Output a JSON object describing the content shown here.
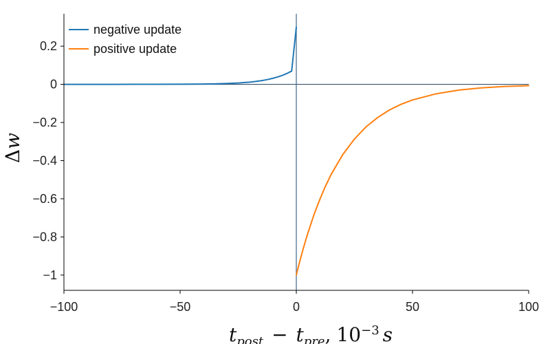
{
  "chart_data": {
    "type": "line",
    "xlim": [
      -100,
      100
    ],
    "ylim": [
      -1.08,
      0.37
    ],
    "xticks": [
      {
        "value": -100,
        "label": "−100"
      },
      {
        "value": -50,
        "label": "−50"
      },
      {
        "value": 0,
        "label": "0"
      },
      {
        "value": 50,
        "label": "50"
      },
      {
        "value": 100,
        "label": "100"
      }
    ],
    "yticks": [
      {
        "value": 0.2,
        "label": "0.2"
      },
      {
        "value": 0,
        "label": "0"
      },
      {
        "value": -0.2,
        "label": "−0.2"
      },
      {
        "value": -0.4,
        "label": "−0.4"
      },
      {
        "value": -0.6,
        "label": "−0.6"
      },
      {
        "value": -0.8,
        "label": "−0.8"
      },
      {
        "value": -1,
        "label": "−1"
      }
    ],
    "xlabel": {
      "t": "t",
      "sub_post": "post",
      "minus": "−",
      "sub_pre": "pre",
      "comma": ",",
      "ten": "10",
      "exp": "−3",
      "unit": "s"
    },
    "ylabel": {
      "delta": "Δ",
      "w": "w"
    },
    "grid": false,
    "legend_position": "top-left",
    "series": [
      {
        "name": "negative update",
        "color": "#1f77b4",
        "x": [
          -100,
          -90,
          -80,
          -70,
          -60,
          -50,
          -45,
          -40,
          -35,
          -30,
          -25,
          -20,
          -17.5,
          -15,
          -12.5,
          -10,
          -8,
          -6,
          -4,
          -2,
          0
        ],
        "y": [
          0.0,
          0.0,
          0.0,
          0.0001,
          0.0002,
          0.0006,
          0.001,
          0.0016,
          0.0026,
          0.0043,
          0.0071,
          0.0117,
          0.015,
          0.0193,
          0.0248,
          0.0319,
          0.0388,
          0.0471,
          0.0572,
          0.0695,
          0.3
        ]
      },
      {
        "name": "positive update",
        "color": "#ff7f0e",
        "x": [
          0,
          1,
          2,
          3,
          4,
          5,
          7.5,
          10,
          12.5,
          15,
          20,
          25,
          30,
          35,
          40,
          45,
          50,
          60,
          70,
          80,
          90,
          100
        ],
        "y": [
          -1.0,
          -0.951,
          -0.905,
          -0.861,
          -0.819,
          -0.779,
          -0.687,
          -0.607,
          -0.535,
          -0.472,
          -0.368,
          -0.287,
          -0.223,
          -0.174,
          -0.135,
          -0.105,
          -0.082,
          -0.05,
          -0.03,
          -0.018,
          -0.011,
          -0.007
        ]
      }
    ]
  }
}
